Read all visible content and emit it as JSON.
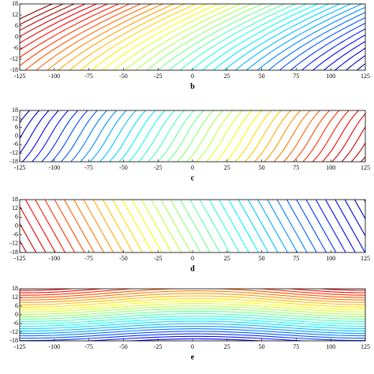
{
  "chart_data": [
    {
      "type": "contour",
      "caption": "b",
      "xlim": [
        -125,
        125
      ],
      "ylim": [
        -18,
        18
      ],
      "xticks": [
        -125,
        -100,
        -75,
        -50,
        -25,
        0,
        25,
        50,
        75,
        100,
        125
      ],
      "yticks": [
        -18,
        -12,
        -6,
        0,
        6,
        12,
        18
      ]
    },
    {
      "type": "contour",
      "caption": "c",
      "xlim": [
        -125,
        125
      ],
      "ylim": [
        -18,
        18
      ],
      "xticks": [
        -125,
        -100,
        -75,
        -50,
        -25,
        0,
        25,
        50,
        75,
        100,
        125
      ],
      "yticks": [
        -18,
        -12,
        -6,
        0,
        6,
        12,
        18
      ]
    },
    {
      "type": "contour",
      "caption": "d",
      "xlim": [
        -125,
        125
      ],
      "ylim": [
        -18,
        18
      ],
      "xticks": [
        -125,
        -100,
        -75,
        -50,
        -25,
        0,
        25,
        50,
        75,
        100,
        125
      ],
      "yticks": [
        -18,
        -12,
        -6,
        0,
        6,
        12,
        18
      ]
    },
    {
      "type": "contour",
      "caption": "e",
      "xlim": [
        -125,
        125
      ],
      "ylim": [
        -18,
        18
      ],
      "xticks": [
        -125,
        -100,
        -75,
        -50,
        -25,
        0,
        25,
        50,
        75,
        100,
        125
      ],
      "yticks": [
        -18,
        -12,
        -6,
        0,
        6,
        12,
        18
      ]
    }
  ]
}
